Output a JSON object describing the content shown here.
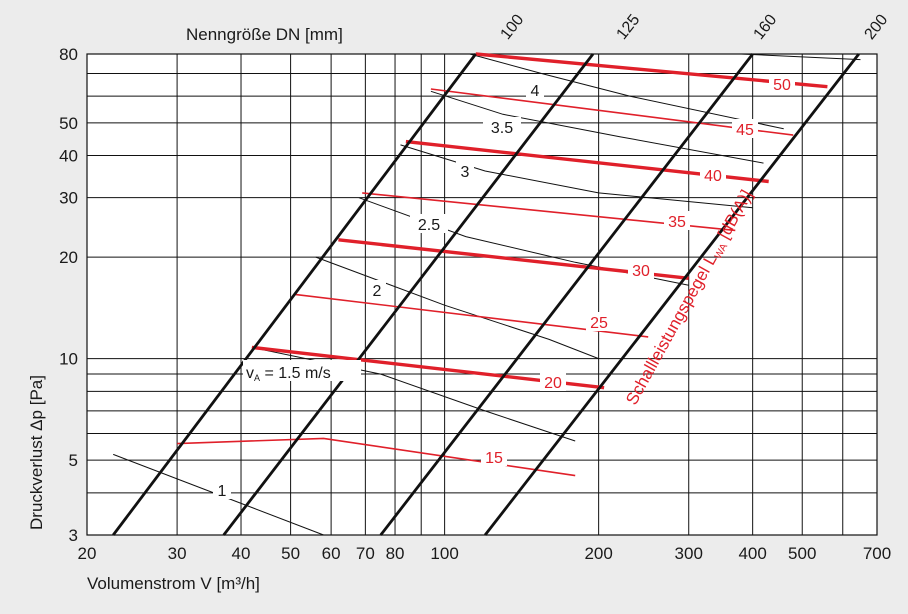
{
  "chart_data": {
    "type": "line",
    "x_scale": "log",
    "y_scale": "log",
    "xlim": [
      20,
      700
    ],
    "ylim": [
      3,
      80
    ],
    "grid": true,
    "xlabel": "Volumenstrom V [m³/h]",
    "ylabel": "Druckverlust Δp [Pa]",
    "top_label": "Nenngröße DN [mm]",
    "x_ticks": [
      {
        "v": 20,
        "label": "20"
      },
      {
        "v": 30,
        "label": "30"
      },
      {
        "v": 40,
        "label": "40"
      },
      {
        "v": 50,
        "label": "50"
      },
      {
        "v": 60,
        "label": "60"
      },
      {
        "v": 70,
        "label": "70"
      },
      {
        "v": 80,
        "label": "80"
      },
      {
        "v": 100,
        "label": "100"
      },
      {
        "v": 200,
        "label": "200"
      },
      {
        "v": 300,
        "label": "300"
      },
      {
        "v": 400,
        "label": "400"
      },
      {
        "v": 500,
        "label": "500"
      },
      {
        "v": 700,
        "label": "700"
      }
    ],
    "y_ticks": [
      {
        "v": 3,
        "label": "3"
      },
      {
        "v": 5,
        "label": "5"
      },
      {
        "v": 10,
        "label": "10"
      },
      {
        "v": 20,
        "label": "20"
      },
      {
        "v": 30,
        "label": "30"
      },
      {
        "v": 40,
        "label": "40"
      },
      {
        "v": 50,
        "label": "50"
      },
      {
        "v": 80,
        "label": "80"
      }
    ],
    "x_grid": [
      20,
      30,
      40,
      50,
      60,
      70,
      80,
      90,
      100,
      200,
      300,
      400,
      500,
      600,
      700
    ],
    "y_grid": [
      3,
      4,
      5,
      6,
      7,
      8,
      9,
      10,
      20,
      30,
      40,
      50,
      60,
      70,
      80
    ],
    "nominal_sizes": [
      {
        "name": "100",
        "points": [
          [
            22.5,
            3
          ],
          [
            115,
            80
          ]
        ]
      },
      {
        "name": "125",
        "points": [
          [
            37,
            3
          ],
          [
            195,
            80
          ]
        ]
      },
      {
        "name": "160",
        "points": [
          [
            75,
            3
          ],
          [
            400,
            80
          ]
        ]
      },
      {
        "name": "200",
        "points": [
          [
            120,
            3
          ],
          [
            645,
            80
          ]
        ]
      }
    ],
    "velocity_lines": [
      {
        "name": "1",
        "points": [
          [
            22.5,
            5.2
          ],
          [
            58,
            3
          ]
        ]
      },
      {
        "name": "1.5",
        "label": "v_A = 1.5 m/s",
        "points": [
          [
            42,
            10.8
          ],
          [
            75,
            9.0
          ],
          [
            120,
            7.0
          ],
          [
            180,
            5.7
          ]
        ]
      },
      {
        "name": "2",
        "points": [
          [
            56,
            20
          ],
          [
            100,
            14.4
          ],
          [
            160,
            11.4
          ],
          [
            200,
            10
          ]
        ]
      },
      {
        "name": "2.5",
        "points": [
          [
            68,
            30
          ],
          [
            110,
            23
          ],
          [
            180,
            19.3
          ],
          [
            300,
            16.5
          ]
        ]
      },
      {
        "name": "3",
        "points": [
          [
            82,
            43
          ],
          [
            120,
            36
          ],
          [
            200,
            31
          ],
          [
            400,
            28
          ]
        ]
      },
      {
        "name": "3.5",
        "points": [
          [
            94,
            62
          ],
          [
            130,
            53
          ],
          [
            220,
            45.5
          ],
          [
            420,
            38
          ]
        ]
      },
      {
        "name": "4",
        "points": [
          [
            112,
            80
          ],
          [
            155,
            70
          ],
          [
            230,
            60
          ],
          [
            460,
            48
          ]
        ]
      },
      {
        "name": "",
        "points": [
          [
            380,
            80
          ],
          [
            650,
            77
          ]
        ]
      }
    ],
    "noise_levels": [
      {
        "level": 15,
        "label": "15",
        "bold": false,
        "points": [
          [
            30,
            5.6
          ],
          [
            58,
            5.8
          ],
          [
            180,
            4.5
          ]
        ]
      },
      {
        "level": 20,
        "label": "20",
        "bold": true,
        "points": [
          [
            42,
            10.8
          ],
          [
            205,
            8.2
          ]
        ]
      },
      {
        "level": 25,
        "label": "25",
        "bold": false,
        "points": [
          [
            51,
            15.5
          ],
          [
            250,
            11.6
          ]
        ]
      },
      {
        "level": 30,
        "label": "30",
        "bold": true,
        "points": [
          [
            62,
            22.5
          ],
          [
            300,
            17.3
          ]
        ]
      },
      {
        "level": 35,
        "label": "35",
        "bold": false,
        "points": [
          [
            69,
            31
          ],
          [
            370,
            24
          ]
        ]
      },
      {
        "level": 40,
        "label": "40",
        "bold": true,
        "points": [
          [
            84,
            44
          ],
          [
            430,
            33.5
          ]
        ]
      },
      {
        "level": 45,
        "label": "45",
        "bold": false,
        "points": [
          [
            94,
            63
          ],
          [
            480,
            46
          ]
        ]
      },
      {
        "level": 50,
        "label": "50",
        "bold": true,
        "points": [
          [
            115,
            80
          ],
          [
            560,
            64
          ]
        ]
      }
    ],
    "noise_axis_label": "Schallleistungspegel L_WA [dB(A)]"
  },
  "colors": {
    "red": "#e0202a",
    "grid": "#111111",
    "background": "#ececec",
    "plot": "#ffffff"
  }
}
